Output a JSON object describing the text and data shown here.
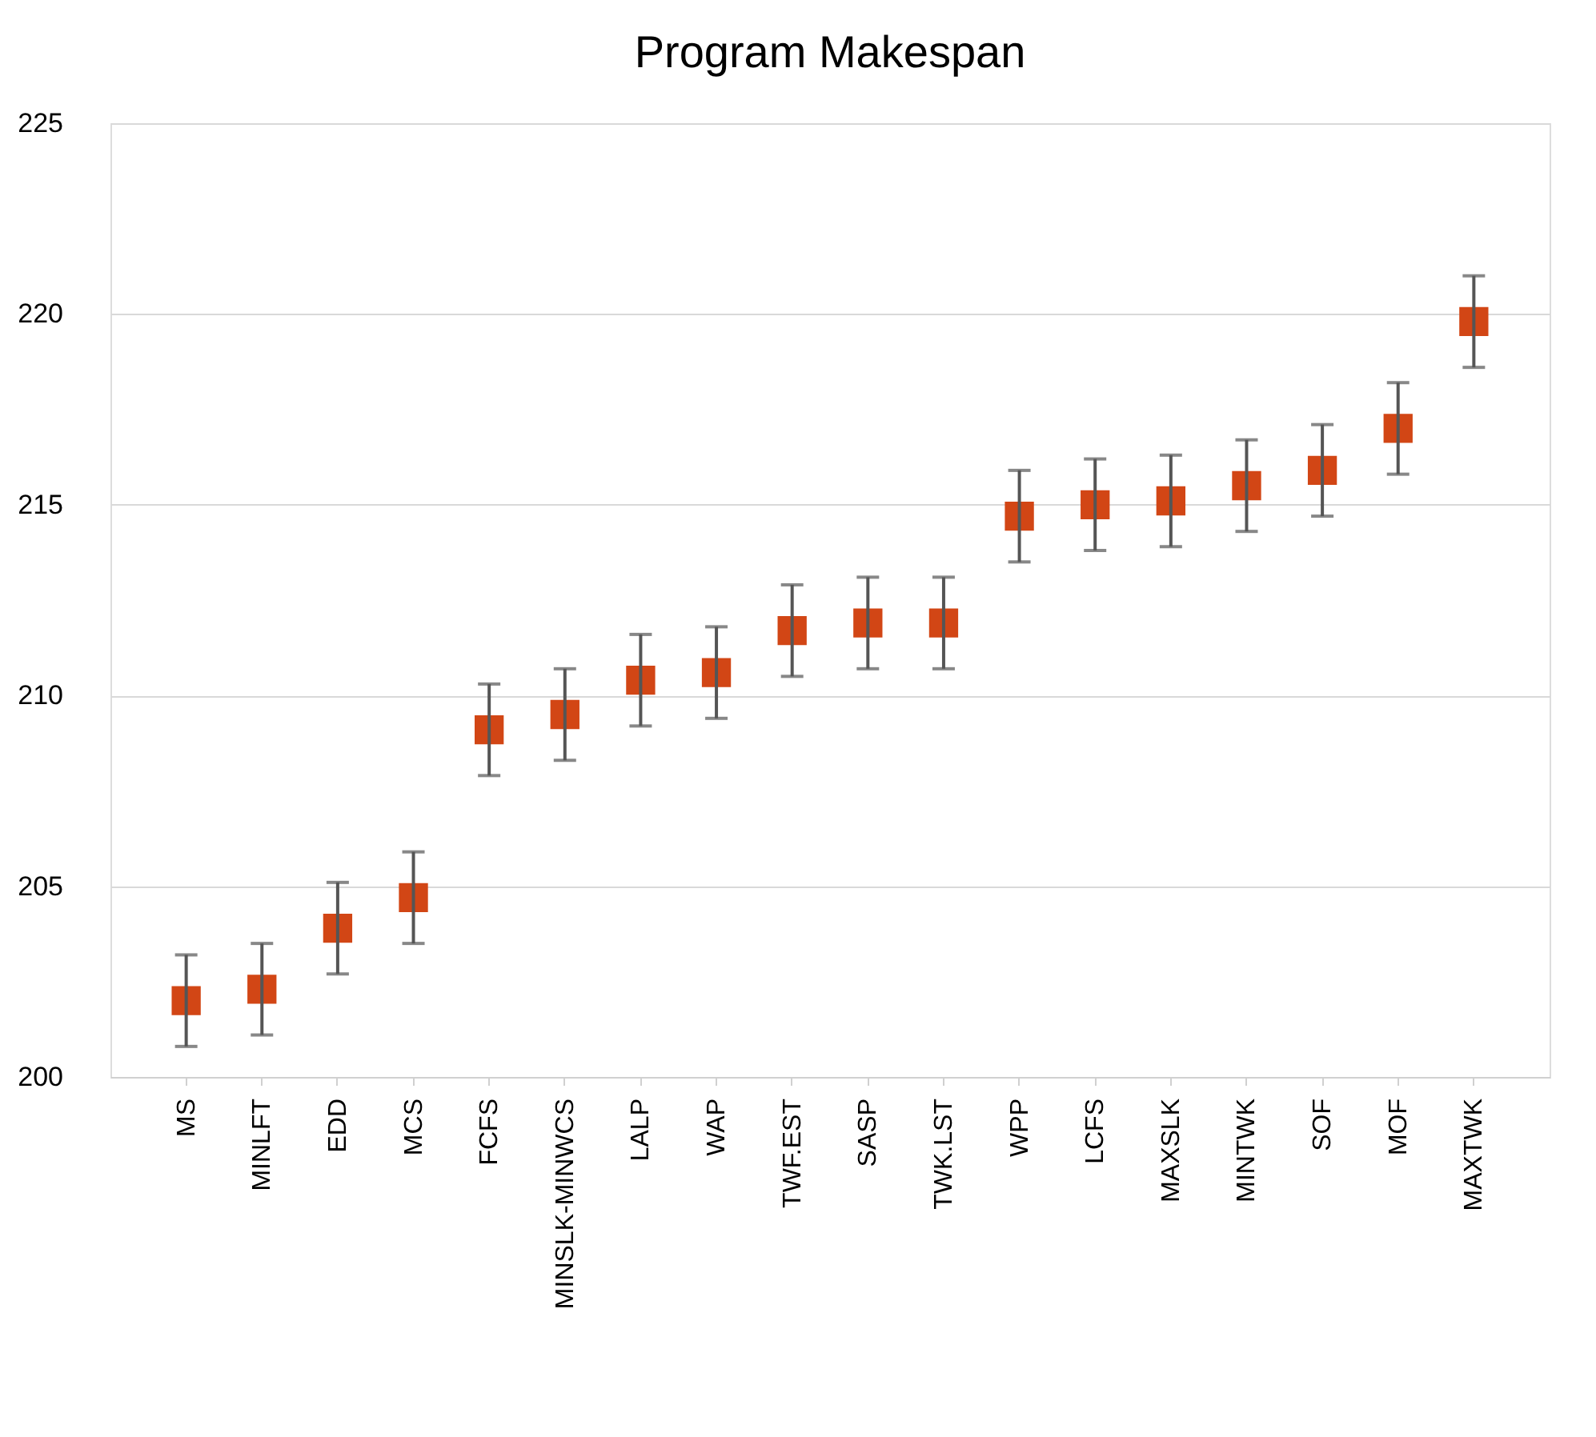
{
  "chart_data": {
    "type": "scatter",
    "title": "Program Makespan",
    "categories": [
      "MS",
      "MINLFT",
      "EDD",
      "MCS",
      "FCFS",
      "MINSLK-MINWCS",
      "LALP",
      "WAP",
      "TWF.EST",
      "SASP",
      "TWK.LST",
      "WPP",
      "LCFS",
      "MAXSLK",
      "MINTWK",
      "SOF",
      "MOF",
      "MAXTWK"
    ],
    "values": [
      202.0,
      202.3,
      203.9,
      204.7,
      209.1,
      209.5,
      210.4,
      210.6,
      211.7,
      211.9,
      211.9,
      214.7,
      215.0,
      215.1,
      215.5,
      215.9,
      217.0,
      219.8
    ],
    "errors": [
      1.2,
      1.2,
      1.2,
      1.2,
      1.2,
      1.2,
      1.2,
      1.2,
      1.2,
      1.2,
      1.2,
      1.2,
      1.2,
      1.2,
      1.2,
      1.2,
      1.2,
      1.2
    ],
    "color": "#d24615",
    "marker": "square",
    "ylim": [
      200,
      225
    ],
    "yticks": [
      200,
      205,
      210,
      215,
      220,
      225
    ],
    "grid": "y"
  }
}
